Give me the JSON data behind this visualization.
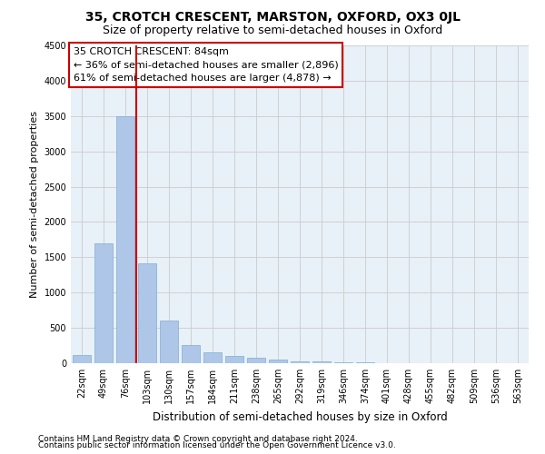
{
  "title": "35, CROTCH CRESCENT, MARSTON, OXFORD, OX3 0JL",
  "subtitle": "Size of property relative to semi-detached houses in Oxford",
  "xlabel": "Distribution of semi-detached houses by size in Oxford",
  "ylabel": "Number of semi-detached properties",
  "footnote1": "Contains HM Land Registry data © Crown copyright and database right 2024.",
  "footnote2": "Contains public sector information licensed under the Open Government Licence v3.0.",
  "annotation_title": "35 CROTCH CRESCENT: 84sqm",
  "annotation_line1": "← 36% of semi-detached houses are smaller (2,896)",
  "annotation_line2": "61% of semi-detached houses are larger (4,878) →",
  "property_size": 84,
  "bar_labels": [
    "22sqm",
    "49sqm",
    "76sqm",
    "103sqm",
    "130sqm",
    "157sqm",
    "184sqm",
    "211sqm",
    "238sqm",
    "265sqm",
    "292sqm",
    "319sqm",
    "346sqm",
    "374sqm",
    "401sqm",
    "428sqm",
    "455sqm",
    "482sqm",
    "509sqm",
    "536sqm",
    "563sqm"
  ],
  "bar_values": [
    120,
    1700,
    3500,
    1420,
    610,
    260,
    150,
    100,
    75,
    55,
    30,
    20,
    12,
    8,
    5,
    3,
    2,
    2,
    1,
    1,
    1
  ],
  "bar_color": "#aec6e8",
  "bar_edge_color": "#7bafd4",
  "red_line_bin": 2,
  "ylim": [
    0,
    4500
  ],
  "yticks": [
    0,
    500,
    1000,
    1500,
    2000,
    2500,
    3000,
    3500,
    4000,
    4500
  ],
  "grid_color": "#cccccc",
  "bg_color": "#e8f0f8",
  "annotation_box_color": "#ffffff",
  "annotation_box_edge": "#cc0000",
  "red_line_color": "#cc0000",
  "title_fontsize": 10,
  "subtitle_fontsize": 9,
  "ylabel_fontsize": 8,
  "xlabel_fontsize": 8.5,
  "tick_fontsize": 7,
  "footnote_fontsize": 6.5,
  "annotation_fontsize": 8
}
